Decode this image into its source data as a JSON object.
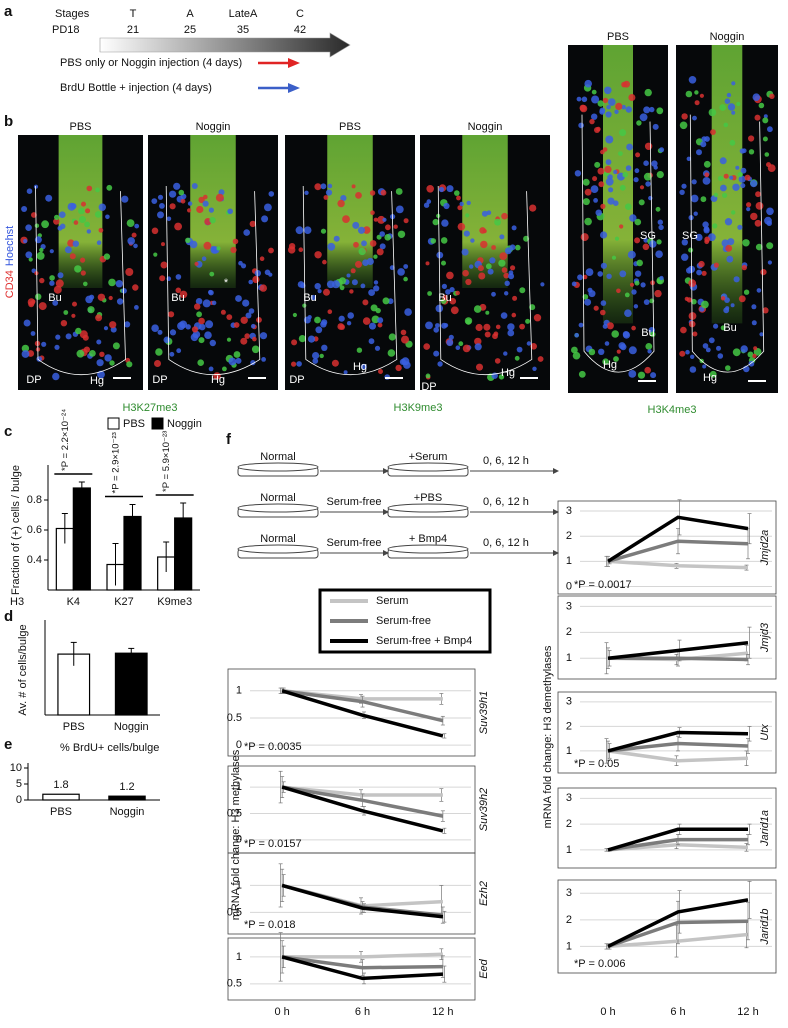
{
  "panel_labels": [
    "a",
    "b",
    "c",
    "d",
    "e",
    "f"
  ],
  "panel_a": {
    "stages_label": "Stages",
    "start": "PD18",
    "stages": [
      {
        "name": "T",
        "day": 21
      },
      {
        "name": "A",
        "day": 25
      },
      {
        "name": "LateA",
        "day": 35
      },
      {
        "name": "C",
        "day": 42
      }
    ],
    "arrows": [
      {
        "text": "PBS only or Noggin injection (4 days)",
        "color": "#e02424"
      },
      {
        "text": "BrdU Bottle + injection (4 days)",
        "color": "#3b5fc8"
      }
    ]
  },
  "panel_b": {
    "images": [
      {
        "title": "PBS",
        "labels": [
          "Bu",
          "DP",
          "Hg"
        ]
      },
      {
        "title": "Noggin",
        "labels": [
          "Bu",
          "*",
          "DP",
          "Hg"
        ]
      },
      {
        "title": "PBS",
        "labels": [
          "Bu",
          "DP",
          "Hg"
        ]
      },
      {
        "title": "Noggin",
        "labels": [
          "Bu",
          "DP",
          "Hg"
        ]
      },
      {
        "title": "PBS",
        "labels": [
          "SG",
          "Bu",
          "Hg"
        ]
      },
      {
        "title": "Noggin",
        "labels": [
          "SG",
          "Bu",
          "Hg"
        ]
      }
    ],
    "stains": [
      "H3K27me3",
      "H3K9me3",
      "H3K4me3"
    ],
    "channels": [
      {
        "text": "CD34",
        "color": "#e03030"
      },
      {
        "text": "Hoechst",
        "color": "#3355dd"
      }
    ]
  },
  "panel_f": {
    "schematic": [
      {
        "from": "Normal",
        "to": "+Serum",
        "time": "0, 6, 12 h"
      },
      {
        "from": "Normal",
        "via": "Serum-free",
        "to": "+PBS",
        "time": "0, 6, 12 h"
      },
      {
        "from": "Normal",
        "via": "Serum-free",
        "to": "+ Bmp4",
        "time": "0, 6, 12 h"
      }
    ],
    "legend": [
      {
        "name": "Serum",
        "color": "#c4c4c4"
      },
      {
        "name": "Serum-free",
        "color": "#7c7c7c"
      },
      {
        "name": "Serum-free + Bmp4",
        "color": "#000000"
      }
    ],
    "ylabels": [
      "mRNA fold change: H3 methylases",
      "mRNA fold change: H3 demethylases"
    ]
  },
  "chart_data": [
    {
      "type": "bar",
      "categories": [
        "K4",
        "K27",
        "K9me3"
      ],
      "xlabel": "H3",
      "ylabel": "Fraction of (+) cells / bulge",
      "series": [
        {
          "name": "PBS",
          "color": "#ffffff",
          "values": [
            0.61,
            0.37,
            0.42
          ],
          "errors": [
            0.1,
            0.14,
            0.1
          ]
        },
        {
          "name": "Noggin",
          "color": "#000000",
          "values": [
            0.88,
            0.69,
            0.68
          ],
          "errors": [
            0.04,
            0.08,
            0.1
          ]
        }
      ],
      "annotations": [
        "*P = 2.2×10⁻²⁴",
        "*P = 2.9×10⁻²³",
        "*P = 5.9×10⁻²³"
      ],
      "ylim": [
        0.2,
        1.0
      ],
      "yticks": [
        0.4,
        0.6,
        0.8
      ]
    },
    {
      "type": "bar",
      "categories": [
        "PBS",
        "Noggin"
      ],
      "ylabel": "Av. # of cells/bulge",
      "values": [
        20.3,
        20.6
      ],
      "errors": [
        3.9,
        1.6
      ],
      "colors": [
        "#ffffff",
        "#000000"
      ],
      "ylim": [
        0,
        30
      ]
    },
    {
      "type": "bar",
      "title": "% BrdU+ cells/bulge",
      "categories": [
        "PBS",
        "Noggin"
      ],
      "values": [
        1.8,
        1.2
      ],
      "colors": [
        "#ffffff",
        "#000000"
      ],
      "ylim": [
        0,
        10
      ],
      "yticks": [
        0,
        5,
        10
      ]
    },
    {
      "type": "line",
      "title": "Suv39h1",
      "annotation": "*P = 0.0035",
      "x": [
        0,
        6,
        12
      ],
      "xlim": [
        -2.4,
        14.4
      ],
      "ylim": [
        -0.2,
        1.4
      ],
      "yticks": [
        0,
        0.5,
        1
      ],
      "series": [
        {
          "values": [
            1,
            0.85,
            0.85
          ],
          "errors": [
            0.05,
            0.08,
            0.1
          ]
        },
        {
          "values": [
            1,
            0.8,
            0.45
          ],
          "errors": [
            0.05,
            0.1,
            0.08
          ]
        },
        {
          "values": [
            1,
            0.55,
            0.17
          ],
          "errors": [
            0.05,
            0.06,
            0.04
          ]
        }
      ]
    },
    {
      "type": "line",
      "title": "Suv39h2",
      "annotation": "*P = 0.0157",
      "x": [
        0,
        6,
        12
      ],
      "xlim": [
        -2.4,
        14.4
      ],
      "ylim": [
        -0.25,
        1.4
      ],
      "yticks": [
        0,
        0.5,
        1
      ],
      "series": [
        {
          "values": [
            1,
            0.85,
            0.85
          ],
          "errors": [
            0.3,
            0.1,
            0.12
          ]
        },
        {
          "values": [
            1,
            0.75,
            0.45
          ],
          "errors": [
            0.2,
            0.12,
            0.1
          ]
        },
        {
          "values": [
            1,
            0.55,
            0.17
          ],
          "errors": [
            0.1,
            0.08,
            0.05
          ]
        }
      ]
    },
    {
      "type": "line",
      "title": "Ezh2",
      "annotation": "*P = 0.018",
      "x": [
        0,
        6,
        12
      ],
      "xlim": [
        -2.4,
        14.4
      ],
      "ylim": [
        0.1,
        1.6
      ],
      "yticks": [
        0.5,
        1
      ],
      "series": [
        {
          "values": [
            1,
            0.62,
            0.7
          ],
          "errors": [
            0.4,
            0.15,
            0.3
          ]
        },
        {
          "values": [
            1,
            0.6,
            0.45
          ],
          "errors": [
            0.3,
            0.1,
            0.15
          ]
        },
        {
          "values": [
            1,
            0.58,
            0.42
          ],
          "errors": [
            0.2,
            0.08,
            0.1
          ]
        }
      ]
    },
    {
      "type": "line",
      "title": "Eed",
      "annotation": "",
      "x": [
        0,
        6,
        12
      ],
      "xlim": [
        -2.4,
        14.4
      ],
      "ylim": [
        0.2,
        1.35
      ],
      "yticks": [
        0.5,
        1
      ],
      "series": [
        {
          "values": [
            1,
            1,
            1.05
          ],
          "errors": [
            0.45,
            0.1,
            0.1
          ]
        },
        {
          "values": [
            1,
            0.8,
            0.82
          ],
          "errors": [
            0.3,
            0.15,
            0.2
          ]
        },
        {
          "values": [
            1,
            0.6,
            0.68
          ],
          "errors": [
            0.2,
            0.1,
            0.15
          ]
        }
      ],
      "xticks": [
        {
          "value": 0,
          "label": "0 h"
        },
        {
          "value": 6,
          "label": "6 h"
        },
        {
          "value": 12,
          "label": "12 h"
        }
      ]
    },
    {
      "type": "line",
      "title": "Jmjd2a",
      "annotation": "*P = 0.0017",
      "x": [
        0,
        6,
        12
      ],
      "xlim": [
        -2.4,
        14.4
      ],
      "ylim": [
        -0.3,
        3.4
      ],
      "yticks": [
        0,
        1,
        2,
        3
      ],
      "series": [
        {
          "values": [
            1,
            0.82,
            0.75
          ],
          "errors": [
            0.2,
            0.1,
            0.1
          ]
        },
        {
          "values": [
            1,
            1.8,
            1.7
          ],
          "errors": [
            0.2,
            0.5,
            0.6
          ]
        },
        {
          "values": [
            1,
            2.75,
            2.3
          ],
          "errors": [
            0.1,
            0.7,
            0.6
          ]
        }
      ]
    },
    {
      "type": "line",
      "title": "Jmjd3",
      "annotation": "",
      "x": [
        0,
        6,
        12
      ],
      "xlim": [
        -2.4,
        14.4
      ],
      "ylim": [
        0.2,
        3.4
      ],
      "yticks": [
        1,
        2,
        3
      ],
      "series": [
        {
          "values": [
            1,
            0.95,
            1.2
          ],
          "errors": [
            0.6,
            0.2,
            0.3
          ]
        },
        {
          "values": [
            1,
            1,
            0.95
          ],
          "errors": [
            0.4,
            0.3,
            0.2
          ]
        },
        {
          "values": [
            1,
            1.3,
            1.6
          ],
          "errors": [
            0.3,
            0.4,
            0.6
          ]
        }
      ]
    },
    {
      "type": "line",
      "title": "Utx",
      "annotation": "*P = 0.05",
      "x": [
        0,
        6,
        12
      ],
      "xlim": [
        -2.4,
        14.4
      ],
      "ylim": [
        0.1,
        3.4
      ],
      "yticks": [
        1,
        2,
        3
      ],
      "series": [
        {
          "values": [
            1,
            0.6,
            0.7
          ],
          "errors": [
            0.5,
            0.2,
            0.3
          ]
        },
        {
          "values": [
            1,
            1.3,
            1.2
          ],
          "errors": [
            0.4,
            0.3,
            0.3
          ]
        },
        {
          "values": [
            1,
            1.75,
            1.7
          ],
          "errors": [
            0.3,
            0.2,
            0.3
          ]
        }
      ]
    },
    {
      "type": "line",
      "title": "Jarid1a",
      "annotation": "",
      "x": [
        0,
        6,
        12
      ],
      "xlim": [
        -2.4,
        14.4
      ],
      "ylim": [
        0.3,
        3.4
      ],
      "yticks": [
        1,
        2,
        3
      ],
      "series": [
        {
          "values": [
            1,
            1.2,
            1.1
          ],
          "errors": [
            0.05,
            0.15,
            0.15
          ]
        },
        {
          "values": [
            1,
            1.4,
            1.4
          ],
          "errors": [
            0.05,
            0.2,
            0.2
          ]
        },
        {
          "values": [
            1,
            1.8,
            1.8
          ],
          "errors": [
            0.05,
            0.2,
            0.2
          ]
        }
      ]
    },
    {
      "type": "line",
      "title": "Jarid1b",
      "annotation": "*P = 0.006",
      "x": [
        0,
        6,
        12
      ],
      "xlim": [
        -2.4,
        14.4
      ],
      "ylim": [
        0,
        3.5
      ],
      "yticks": [
        1,
        2,
        3
      ],
      "series": [
        {
          "values": [
            1,
            1.2,
            1.45
          ],
          "errors": [
            0.1,
            0.6,
            0.5
          ]
        },
        {
          "values": [
            1,
            1.9,
            1.95
          ],
          "errors": [
            0.1,
            0.8,
            0.7
          ]
        },
        {
          "values": [
            1,
            2.3,
            2.75
          ],
          "errors": [
            0.1,
            0.8,
            0.7
          ]
        }
      ],
      "xticks": [
        {
          "value": 0,
          "label": "0 h"
        },
        {
          "value": 6,
          "label": "6 h"
        },
        {
          "value": 12,
          "label": "12 h"
        }
      ]
    }
  ]
}
